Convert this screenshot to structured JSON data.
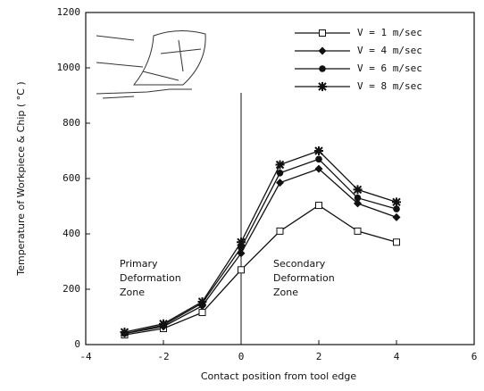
{
  "chart_data": {
    "type": "line",
    "xlabel": "Contact position from tool edge",
    "ylabel": "Temperature of Workpiece & Chip ( °C )",
    "x": [
      -3,
      -2,
      -1,
      0,
      1,
      2,
      3,
      4
    ],
    "series": [
      {
        "name": "V = 1 m/sec",
        "color": "#111111",
        "marker": "square-open",
        "values": [
          35,
          58,
          116,
          270,
          410,
          503,
          410,
          370
        ]
      },
      {
        "name": "V = 4 m/sec",
        "color": "#111111",
        "marker": "diamond",
        "values": [
          40,
          65,
          140,
          330,
          585,
          635,
          510,
          460
        ]
      },
      {
        "name": "V = 6 m/sec",
        "color": "#111111",
        "marker": "circle",
        "values": [
          40,
          70,
          150,
          350,
          620,
          670,
          530,
          490
        ]
      },
      {
        "name": "V = 8 m/sec",
        "color": "#111111",
        "marker": "star",
        "values": [
          45,
          75,
          155,
          370,
          650,
          700,
          560,
          515
        ]
      }
    ],
    "annotations": [
      [
        "Primary",
        "Deformation",
        "Zone"
      ],
      [
        "Secondary",
        "Deformation",
        "Zone"
      ]
    ],
    "divider_x": 0,
    "xlim": [
      -4,
      6
    ],
    "xticks": [
      -4,
      -2,
      0,
      2,
      4,
      6
    ],
    "ylim": [
      0,
      1200
    ],
    "yticks": [
      0,
      200,
      400,
      600,
      800,
      1000,
      1200
    ],
    "grid": false,
    "legend": "upper right"
  }
}
